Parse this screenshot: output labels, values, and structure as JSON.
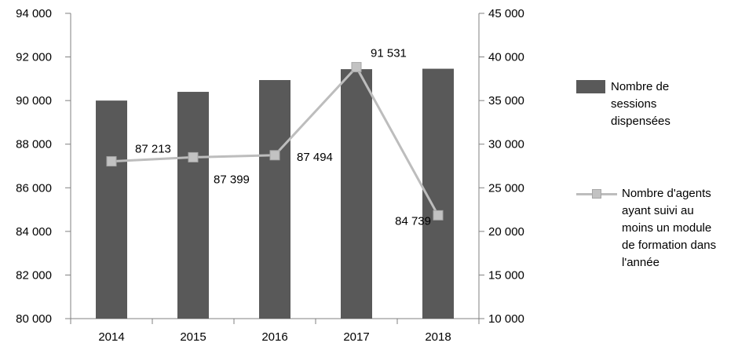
{
  "chart_data": {
    "type": "combo",
    "categories": [
      "2014",
      "2015",
      "2016",
      "2017",
      "2018"
    ],
    "series": [
      {
        "name": "Nombre de sessions dispensées",
        "type": "bar",
        "axis": "right",
        "color": "#595959",
        "values": [
          35000,
          36000,
          37350,
          38600,
          38650
        ]
      },
      {
        "name": "Nombre d'agents ayant suivi au moins un module de formation dans l'année",
        "type": "line",
        "axis": "left",
        "color": "#BDBDBD",
        "marker": {
          "shape": "square",
          "fill": "#C2C2C2",
          "border": "#A6A6A6"
        },
        "values": [
          87213,
          87399,
          87494,
          91531,
          84739
        ],
        "data_labels": [
          "87 213",
          "87 399",
          "87 494",
          "91 531",
          "84 739"
        ],
        "data_label_placements": [
          "above-right",
          "below-right",
          "right",
          "above",
          "left"
        ]
      }
    ],
    "left_axis": {
      "min": 80000,
      "max": 94000,
      "step": 2000,
      "tick_labels": [
        "80 000",
        "82 000",
        "84 000",
        "86 000",
        "88 000",
        "90 000",
        "92 000",
        "94 000"
      ]
    },
    "right_axis": {
      "min": 10000,
      "max": 45000,
      "step": 5000,
      "tick_labels": [
        "10 000",
        "15 000",
        "20 000",
        "25 000",
        "30 000",
        "35 000",
        "40 000",
        "45 000"
      ]
    },
    "axes_color": "#808080",
    "text_color": "#000000",
    "grid": false,
    "legend_position": "right",
    "title": "",
    "xlabel": "",
    "ylabel": ""
  }
}
